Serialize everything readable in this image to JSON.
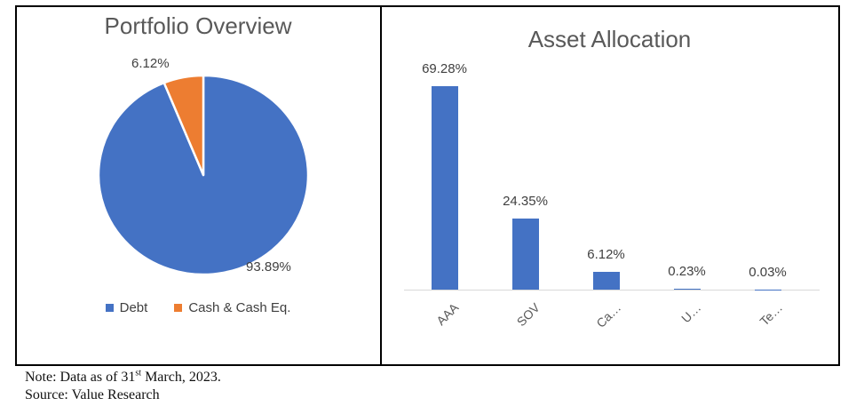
{
  "colors": {
    "series_blue": "#4472C4",
    "series_orange": "#ED7D31",
    "title_gray": "#595959",
    "label_gray": "#404040",
    "axis_gray": "#D9D9D9",
    "border_black": "#000000"
  },
  "chart_data": [
    {
      "type": "pie",
      "title": "Portfolio Overview",
      "labels": [
        "Debt",
        "Cash & Cash Eq."
      ],
      "values": [
        93.89,
        6.12
      ],
      "data_labels": [
        "93.89%",
        "6.12%"
      ],
      "slice_colors": [
        "#4472C4",
        "#ED7D31"
      ],
      "start_angle_deg": 0,
      "direction": "clockwise",
      "legend_position": "bottom"
    },
    {
      "type": "bar",
      "title": "Asset Allocation",
      "categories": [
        "AAA",
        "SOV",
        "Ca…",
        "U…",
        "Te…"
      ],
      "values": [
        69.28,
        24.35,
        6.12,
        0.23,
        0.03
      ],
      "data_labels": [
        "69.28%",
        "24.35%",
        "6.12%",
        "0.23%",
        "0.03%"
      ],
      "bar_color": "#4472C4",
      "ylim": [
        0,
        69.28
      ],
      "grid": false,
      "y_axis_visible": false,
      "category_label_rotation_deg": 45,
      "legend_position": "none"
    }
  ],
  "note": {
    "line1_prefix": "Note: Data as of 31",
    "line1_superscript": "st",
    "line1_suffix": " March, 2023.",
    "line2": "Source: Value Research"
  }
}
